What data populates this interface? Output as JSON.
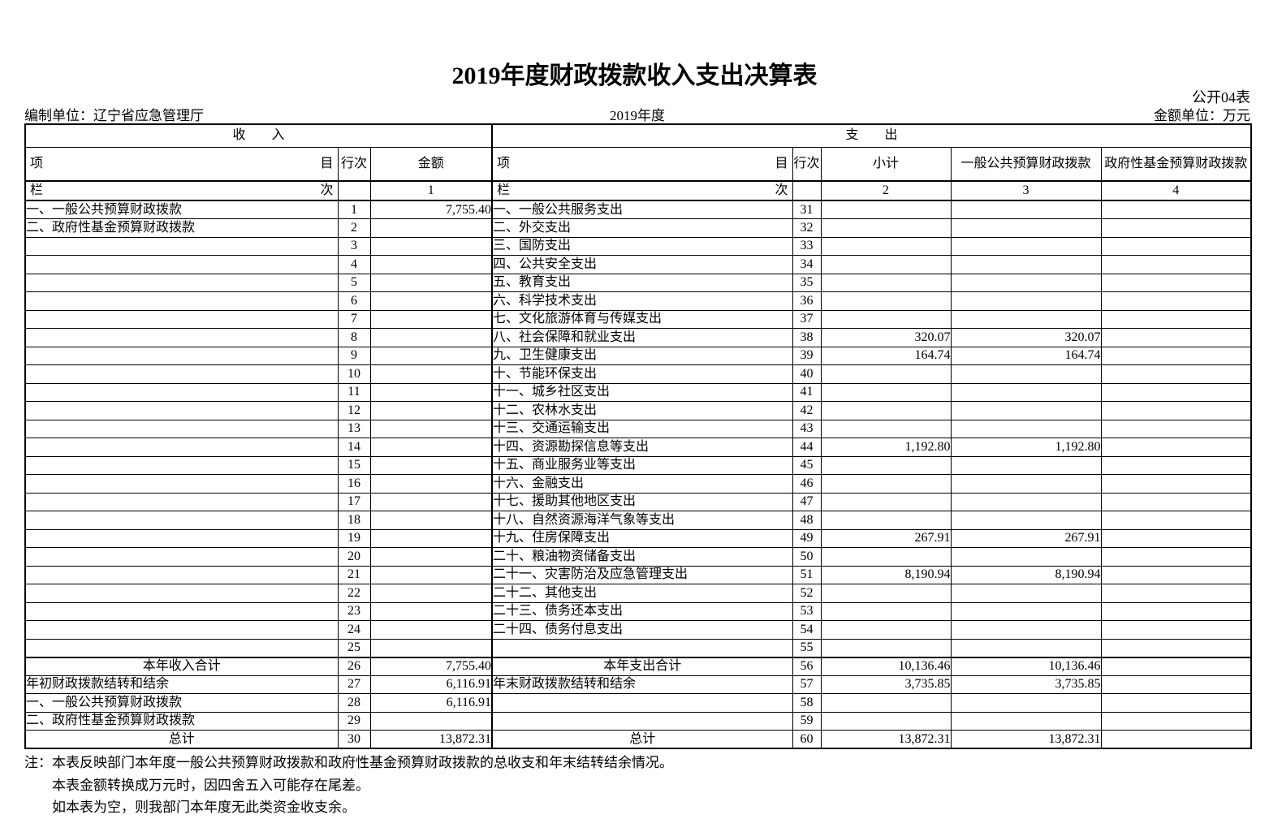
{
  "page": {
    "title": "2019年度财政拨款收入支出决算表",
    "table_code": "公开04表",
    "prepared_by": "编制单位：辽宁省应急管理厅",
    "period": "2019年度",
    "unit": "金额单位：万元"
  },
  "table": {
    "income_header": "收　　入",
    "expense_header": "支　　出",
    "col_item_left": "项",
    "col_item_right": "目",
    "col_row_no_income": "行次",
    "col_row_no_expense": "行次",
    "col_amount": "金额",
    "col_subtotal": "小计",
    "col_general": "一般公共预算财政拨款",
    "col_fund": "政府性基金预算财政拨款",
    "lan": "栏",
    "ci": "次",
    "col_nums": [
      "1",
      "2",
      "3",
      "4"
    ],
    "rows": [
      {
        "li": "一、一般公共预算财政拨款",
        "ln": "1",
        "la": "7,755.40",
        "lc": false,
        "ri": "一、一般公共服务支出",
        "rn": "31",
        "rs": "",
        "rg": "",
        "rf": "",
        "rc": false
      },
      {
        "li": "二、政府性基金预算财政拨款",
        "ln": "2",
        "la": "",
        "lc": false,
        "ri": "二、外交支出",
        "rn": "32",
        "rs": "",
        "rg": "",
        "rf": "",
        "rc": false
      },
      {
        "li": "",
        "ln": "3",
        "la": "",
        "lc": false,
        "ri": "三、国防支出",
        "rn": "33",
        "rs": "",
        "rg": "",
        "rf": "",
        "rc": false
      },
      {
        "li": "",
        "ln": "4",
        "la": "",
        "lc": false,
        "ri": "四、公共安全支出",
        "rn": "34",
        "rs": "",
        "rg": "",
        "rf": "",
        "rc": false
      },
      {
        "li": "",
        "ln": "5",
        "la": "",
        "lc": false,
        "ri": "五、教育支出",
        "rn": "35",
        "rs": "",
        "rg": "",
        "rf": "",
        "rc": false
      },
      {
        "li": "",
        "ln": "6",
        "la": "",
        "lc": false,
        "ri": "六、科学技术支出",
        "rn": "36",
        "rs": "",
        "rg": "",
        "rf": "",
        "rc": false
      },
      {
        "li": "",
        "ln": "7",
        "la": "",
        "lc": false,
        "ri": "七、文化旅游体育与传媒支出",
        "rn": "37",
        "rs": "",
        "rg": "",
        "rf": "",
        "rc": false
      },
      {
        "li": "",
        "ln": "8",
        "la": "",
        "lc": false,
        "ri": "八、社会保障和就业支出",
        "rn": "38",
        "rs": "320.07",
        "rg": "320.07",
        "rf": "",
        "rc": false
      },
      {
        "li": "",
        "ln": "9",
        "la": "",
        "lc": false,
        "ri": "九、卫生健康支出",
        "rn": "39",
        "rs": "164.74",
        "rg": "164.74",
        "rf": "",
        "rc": false
      },
      {
        "li": "",
        "ln": "10",
        "la": "",
        "lc": false,
        "ri": "十、节能环保支出",
        "rn": "40",
        "rs": "",
        "rg": "",
        "rf": "",
        "rc": false
      },
      {
        "li": "",
        "ln": "11",
        "la": "",
        "lc": false,
        "ri": "十一、城乡社区支出",
        "rn": "41",
        "rs": "",
        "rg": "",
        "rf": "",
        "rc": false
      },
      {
        "li": "",
        "ln": "12",
        "la": "",
        "lc": false,
        "ri": "十二、农林水支出",
        "rn": "42",
        "rs": "",
        "rg": "",
        "rf": "",
        "rc": false
      },
      {
        "li": "",
        "ln": "13",
        "la": "",
        "lc": false,
        "ri": "十三、交通运输支出",
        "rn": "43",
        "rs": "",
        "rg": "",
        "rf": "",
        "rc": false
      },
      {
        "li": "",
        "ln": "14",
        "la": "",
        "lc": false,
        "ri": "十四、资源勘探信息等支出",
        "rn": "44",
        "rs": "1,192.80",
        "rg": "1,192.80",
        "rf": "",
        "rc": false
      },
      {
        "li": "",
        "ln": "15",
        "la": "",
        "lc": false,
        "ri": "十五、商业服务业等支出",
        "rn": "45",
        "rs": "",
        "rg": "",
        "rf": "",
        "rc": false
      },
      {
        "li": "",
        "ln": "16",
        "la": "",
        "lc": false,
        "ri": "十六、金融支出",
        "rn": "46",
        "rs": "",
        "rg": "",
        "rf": "",
        "rc": false
      },
      {
        "li": "",
        "ln": "17",
        "la": "",
        "lc": false,
        "ri": "十七、援助其他地区支出",
        "rn": "47",
        "rs": "",
        "rg": "",
        "rf": "",
        "rc": false
      },
      {
        "li": "",
        "ln": "18",
        "la": "",
        "lc": false,
        "ri": "十八、自然资源海洋气象等支出",
        "rn": "48",
        "rs": "",
        "rg": "",
        "rf": "",
        "rc": false
      },
      {
        "li": "",
        "ln": "19",
        "la": "",
        "lc": false,
        "ri": "十九、住房保障支出",
        "rn": "49",
        "rs": "267.91",
        "rg": "267.91",
        "rf": "",
        "rc": false
      },
      {
        "li": "",
        "ln": "20",
        "la": "",
        "lc": false,
        "ri": "二十、粮油物资储备支出",
        "rn": "50",
        "rs": "",
        "rg": "",
        "rf": "",
        "rc": false
      },
      {
        "li": "",
        "ln": "21",
        "la": "",
        "lc": false,
        "ri": "二十一、灾害防治及应急管理支出",
        "rn": "51",
        "rs": "8,190.94",
        "rg": "8,190.94",
        "rf": "",
        "rc": false
      },
      {
        "li": "",
        "ln": "22",
        "la": "",
        "lc": false,
        "ri": "二十二、其他支出",
        "rn": "52",
        "rs": "",
        "rg": "",
        "rf": "",
        "rc": false
      },
      {
        "li": "",
        "ln": "23",
        "la": "",
        "lc": false,
        "ri": "二十三、债务还本支出",
        "rn": "53",
        "rs": "",
        "rg": "",
        "rf": "",
        "rc": false
      },
      {
        "li": "",
        "ln": "24",
        "la": "",
        "lc": false,
        "ri": "二十四、债务付息支出",
        "rn": "54",
        "rs": "",
        "rg": "",
        "rf": "",
        "rc": false
      },
      {
        "li": "",
        "ln": "25",
        "la": "",
        "lc": false,
        "ri": "",
        "rn": "55",
        "rs": "",
        "rg": "",
        "rf": "",
        "rc": false
      },
      {
        "li": "本年收入合计",
        "ln": "26",
        "la": "7,755.40",
        "lc": true,
        "ri": "本年支出合计",
        "rn": "56",
        "rs": "10,136.46",
        "rg": "10,136.46",
        "rf": "",
        "rc": true
      },
      {
        "li": "年初财政拨款结转和结余",
        "ln": "27",
        "la": "6,116.91",
        "lc": false,
        "ri": "年末财政拨款结转和结余",
        "rn": "57",
        "rs": "3,735.85",
        "rg": "3,735.85",
        "rf": "",
        "rc": false
      },
      {
        "li": "一、一般公共预算财政拨款",
        "ln": "28",
        "la": "6,116.91",
        "lc": false,
        "ri": "",
        "rn": "58",
        "rs": "",
        "rg": "",
        "rf": "",
        "rc": false
      },
      {
        "li": "二、政府性基金预算财政拨款",
        "ln": "29",
        "la": "",
        "lc": false,
        "ri": "",
        "rn": "59",
        "rs": "",
        "rg": "",
        "rf": "",
        "rc": false
      },
      {
        "li": "总计",
        "ln": "30",
        "la": "13,872.31",
        "lc": true,
        "ri": "总计",
        "rn": "60",
        "rs": "13,872.31",
        "rg": "13,872.31",
        "rf": "",
        "rc": true
      }
    ]
  },
  "notes": {
    "prefix": "注：",
    "lines": [
      "本表反映部门本年度一般公共预算财政拨款和政府性基金预算财政拨款的总收支和年末结转结余情况。",
      "本表金额转换成万元时，因四舍五入可能存在尾差。",
      "如本表为空，则我部门本年度无此类资金收支余。"
    ]
  }
}
